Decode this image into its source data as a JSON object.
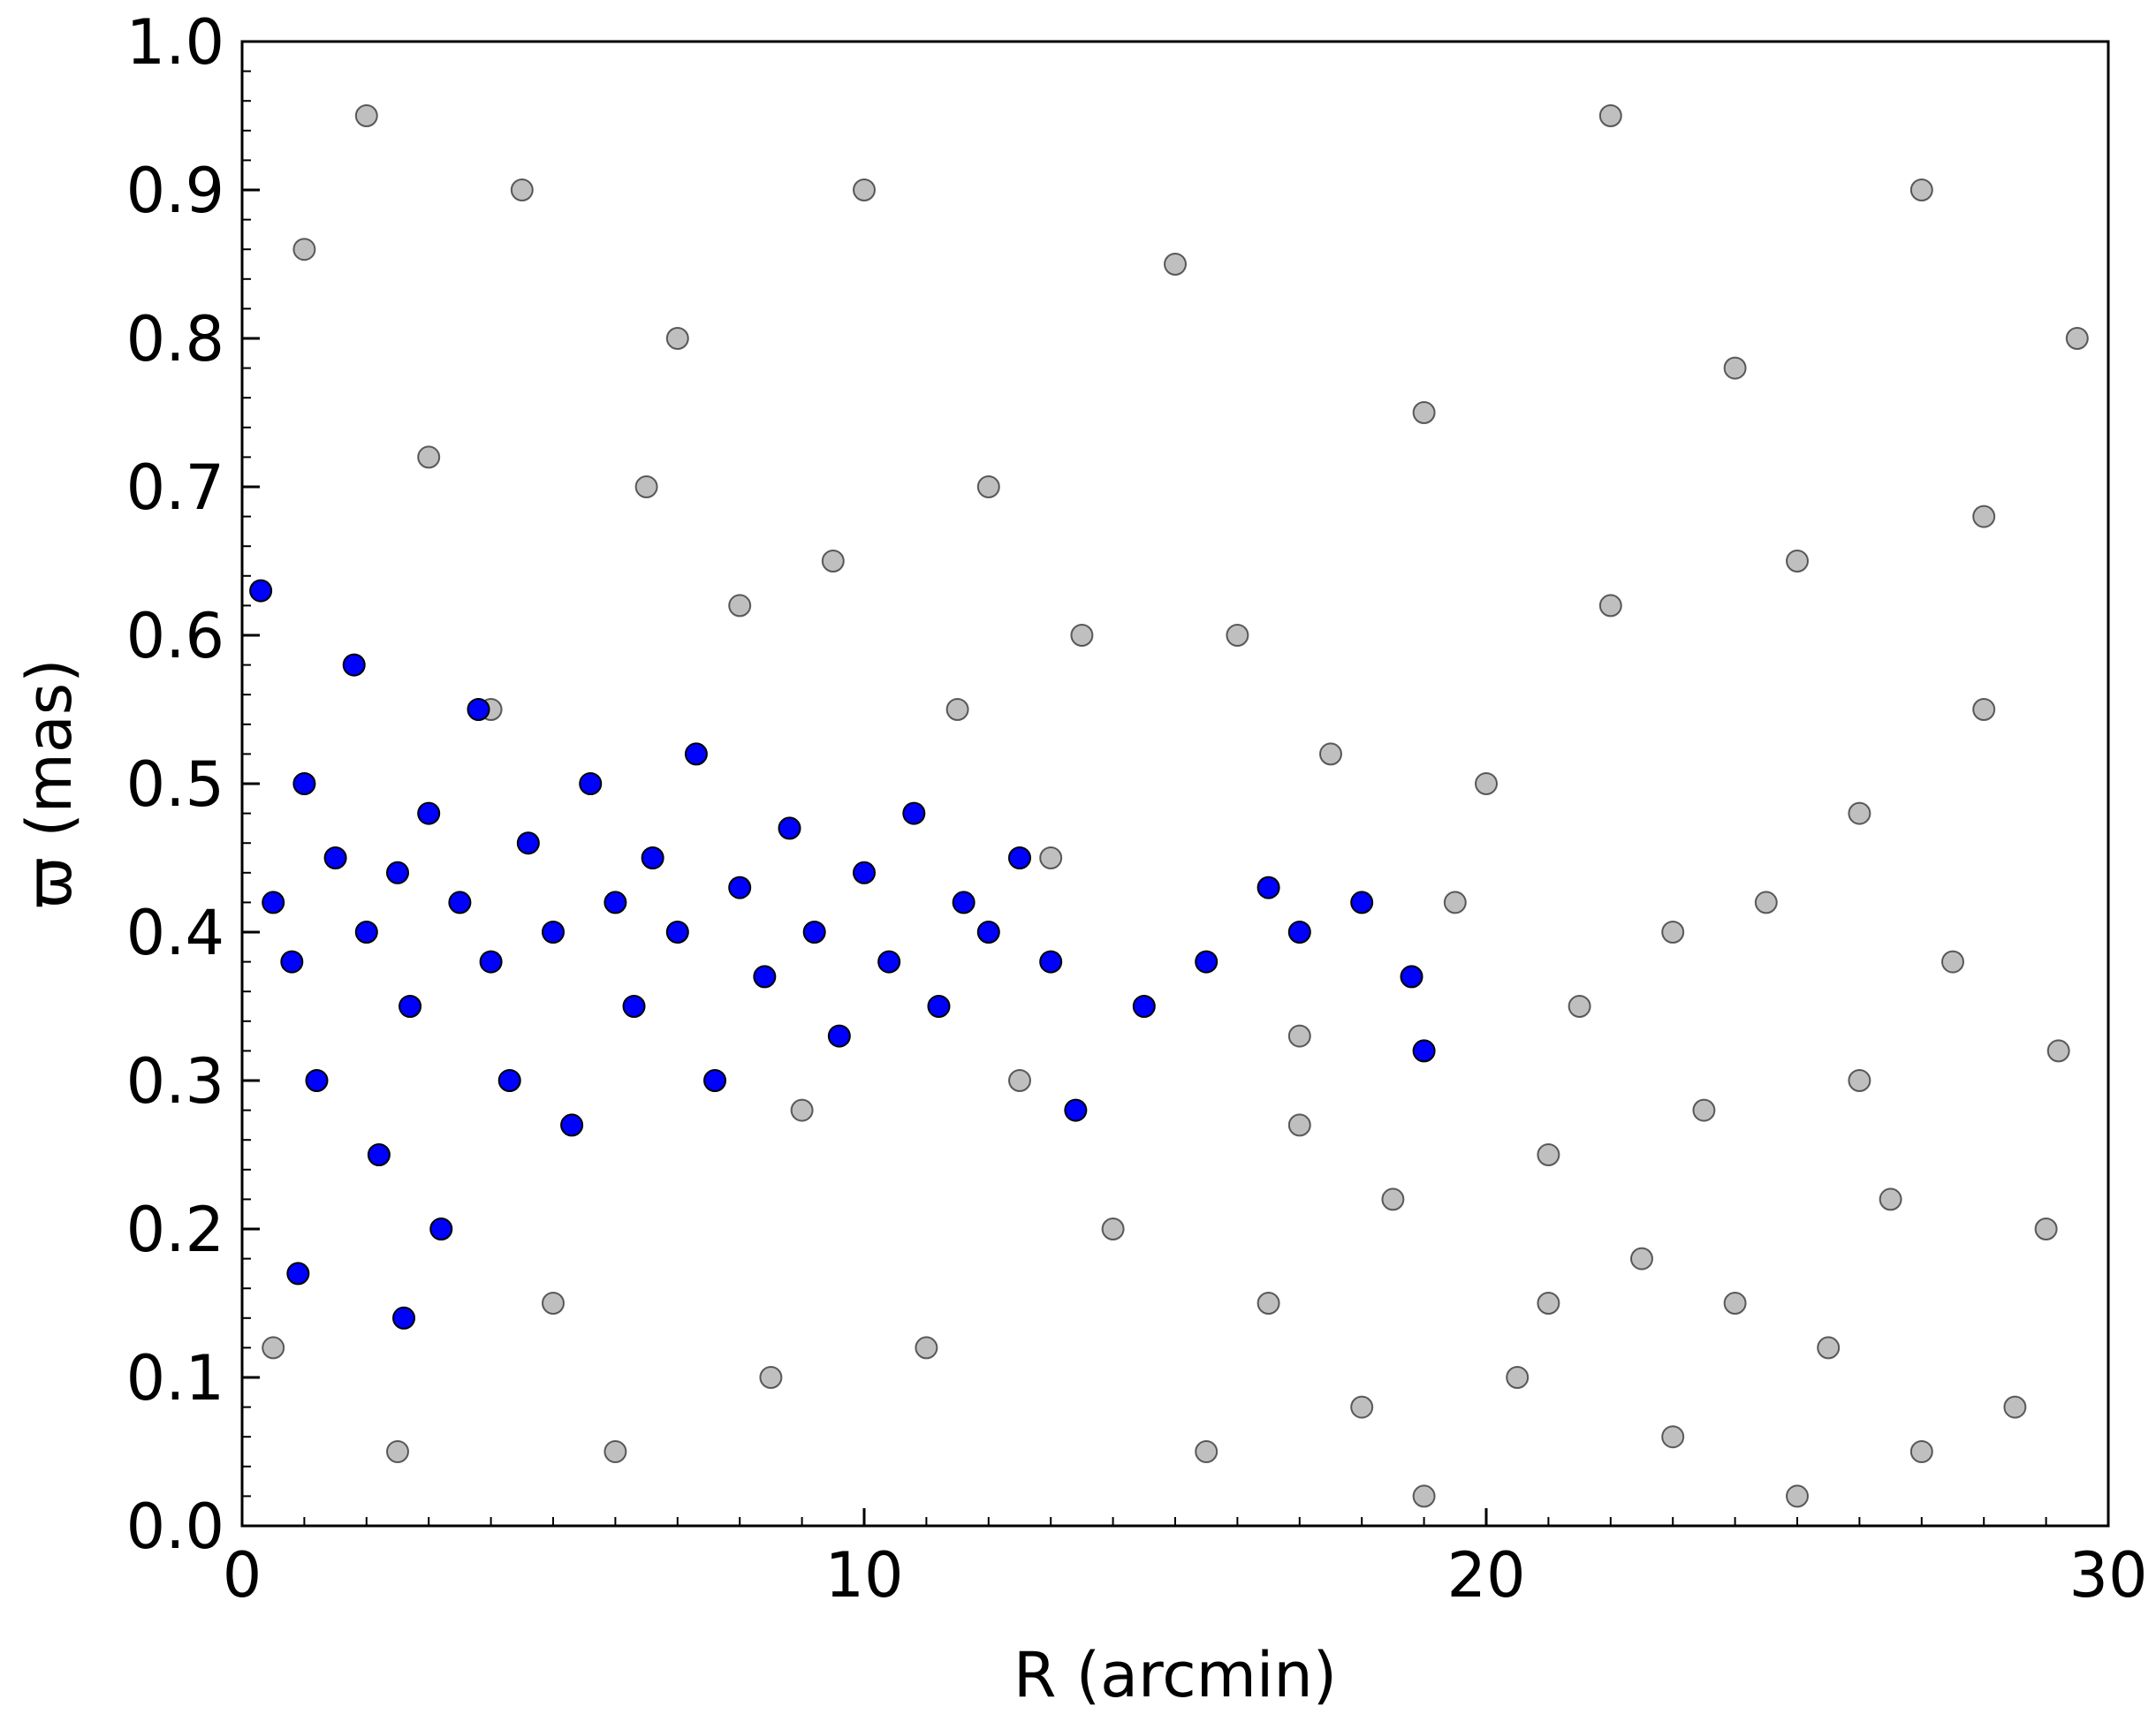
{
  "chart_data": {
    "type": "scatter",
    "xlabel": "R (arcmin)",
    "ylabel": "ϖ (mas)",
    "xlim": [
      0,
      30
    ],
    "ylim": [
      0,
      1
    ],
    "xticks": [
      0,
      10,
      20,
      30
    ],
    "yticks": [
      {
        "value": 0,
        "label": "0.0"
      },
      0.1,
      0.2,
      0.3,
      0.4,
      0.5,
      0.6,
      0.7,
      0.8,
      0.9,
      {
        "value": 1,
        "label": "1.0"
      }
    ],
    "x_minor_ticks": [
      0,
      1,
      2,
      3,
      4,
      5,
      6,
      7,
      8,
      9,
      10,
      11,
      12,
      13,
      14,
      15,
      16,
      17,
      18,
      19,
      20,
      21,
      22,
      23,
      24,
      25,
      26,
      27,
      28,
      29,
      30
    ],
    "y_minor_ticks": [
      0,
      0.02,
      0.04,
      0.06,
      0.08,
      0.1,
      0.12,
      0.14,
      0.16,
      0.18,
      0.2,
      0.22,
      0.24,
      0.26,
      0.28,
      0.3,
      0.32,
      0.34,
      0.36,
      0.38,
      0.4,
      0.42,
      0.44,
      0.46,
      0.48,
      0.5,
      0.52,
      0.54,
      0.56,
      0.58,
      0.6,
      0.62,
      0.64,
      0.66,
      0.68,
      0.7,
      0.72,
      0.74,
      0.76,
      0.78,
      0.8,
      0.82,
      0.84,
      0.86,
      0.88,
      0.9,
      0.92,
      0.94,
      0.96,
      0.98,
      1
    ],
    "series": [
      {
        "color": "#808080",
        "x": [
          1,
          2,
          3,
          4,
          5,
          6,
          7,
          8,
          9,
          10,
          11,
          12,
          13,
          14,
          15,
          16,
          17,
          18,
          19,
          20,
          21,
          22,
          23,
          24,
          25,
          26,
          27,
          28,
          29,
          29.5,
          20.5,
          21.5,
          22.5,
          23.5,
          24.5,
          25.5,
          26.5,
          27.5,
          28.5,
          29.2,
          18.5,
          16.5,
          15.5,
          12.5,
          11.5,
          9.5,
          0.5,
          2.5,
          4.5,
          6.5,
          8.5,
          13.5,
          17.5,
          19.5,
          22,
          24,
          26,
          28,
          27,
          25,
          23,
          21,
          19,
          17
        ],
        "y": [
          0.86,
          0.95,
          0.72,
          0.55,
          0.15,
          0.05,
          0.8,
          0.62,
          0.28,
          0.9,
          0.12,
          0.7,
          0.45,
          0.2,
          0.85,
          0.6,
          0.33,
          0.08,
          0.75,
          0.5,
          0.25,
          0.95,
          0.4,
          0.15,
          0.65,
          0.3,
          0.05,
          0.55,
          0.2,
          0.8,
          0.1,
          0.35,
          0.18,
          0.28,
          0.42,
          0.12,
          0.22,
          0.38,
          0.08,
          0.32,
          0.22,
          0.15,
          0.05,
          0.3,
          0.55,
          0.65,
          0.12,
          0.05,
          0.9,
          0.7,
          0.1,
          0.6,
          0.52,
          0.42,
          0.62,
          0.78,
          0.48,
          0.68,
          0.9,
          0.02,
          0.06,
          0.15,
          0.02,
          0.27
        ]
      },
      {
        "color": "#0000ff",
        "x": [
          0.3,
          0.5,
          0.8,
          1,
          1.2,
          1.5,
          1.8,
          2,
          2.2,
          2.5,
          2.7,
          3,
          3.2,
          3.5,
          3.8,
          4,
          4.3,
          4.6,
          5,
          5.3,
          5.6,
          6,
          6.3,
          6.6,
          7,
          7.3,
          7.6,
          8,
          8.4,
          8.8,
          9.2,
          9.6,
          10,
          10.4,
          10.8,
          11.2,
          11.6,
          12,
          12.5,
          13,
          13.4,
          14.5,
          15.5,
          16.5,
          17,
          18,
          18.8,
          19,
          0.9,
          2.6
        ],
        "y": [
          0.63,
          0.42,
          0.38,
          0.5,
          0.3,
          0.45,
          0.58,
          0.4,
          0.25,
          0.44,
          0.35,
          0.48,
          0.2,
          0.42,
          0.55,
          0.38,
          0.3,
          0.46,
          0.4,
          0.27,
          0.5,
          0.42,
          0.35,
          0.45,
          0.4,
          0.52,
          0.3,
          0.43,
          0.37,
          0.47,
          0.4,
          0.33,
          0.44,
          0.38,
          0.48,
          0.35,
          0.42,
          0.4,
          0.45,
          0.38,
          0.28,
          0.35,
          0.38,
          0.43,
          0.4,
          0.42,
          0.37,
          0.32,
          0.17,
          0.14
        ]
      }
    ]
  }
}
